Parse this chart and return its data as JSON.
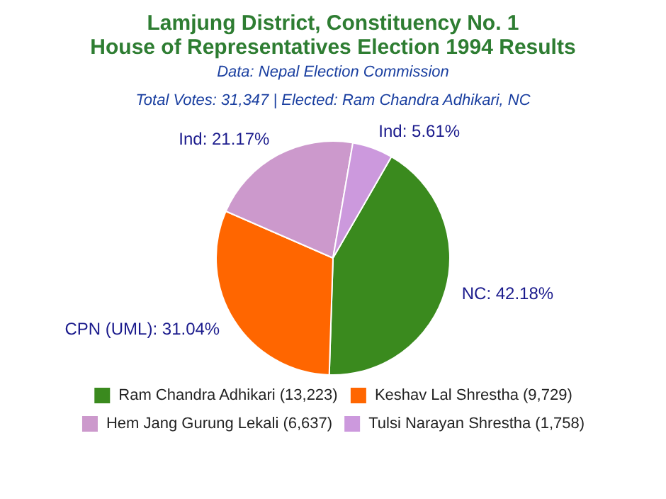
{
  "chart_data": {
    "type": "pie",
    "title": "Lamjung District, Constituency No. 1\nHouse of Representatives Election 1994 Results",
    "subtitle": "Data: Nepal Election Commission",
    "annotations": [
      "Total Votes: 31,347 | Elected: Ram Chandra Adhikari, NC"
    ],
    "categories": [
      "Ram Chandra Adhikari (13,223)",
      "Keshav Lal Shrestha (9,729)",
      "Hem Jang Gurung Lekali (6,637)",
      "Tulsi Narayan Shrestha (1,758)"
    ],
    "values": [
      42.18,
      31.04,
      21.17,
      5.61
    ],
    "colors": [
      "#3a8a1e",
      "#ff6600",
      "#cc99cc",
      "#cc99dd"
    ],
    "value_labels": [
      "NC: 42.18%",
      "CPN (UML): 31.04%",
      "Ind: 21.17%",
      "Ind: 5.61%"
    ],
    "legend": "bottom"
  }
}
